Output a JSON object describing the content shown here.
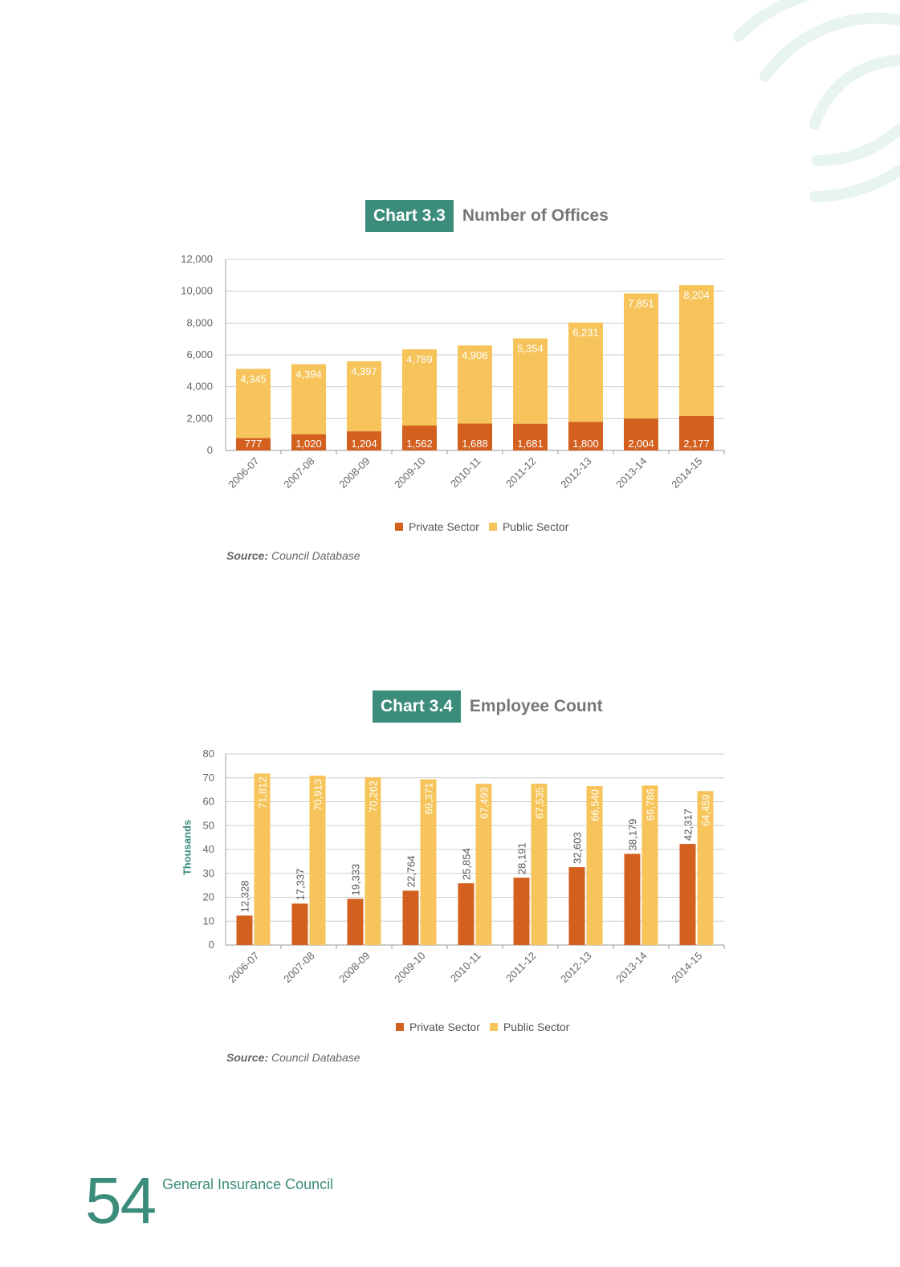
{
  "colors": {
    "private": "#d4601f",
    "public": "#f6c45a",
    "accent": "#3c8c7c",
    "grid": "#cccccc"
  },
  "chart_data": [
    {
      "type": "bar",
      "stacked": true,
      "badge": "Chart 3.3",
      "title": "Number of Offices",
      "categories": [
        "2006-07",
        "2007-08",
        "2008-09",
        "2009-10",
        "2010-11",
        "2011-12",
        "2012-13",
        "2013-14",
        "2014-15"
      ],
      "series": [
        {
          "name": "Private Sector",
          "values": [
            777,
            1020,
            1204,
            1562,
            1688,
            1681,
            1800,
            2004,
            2177
          ]
        },
        {
          "name": "Public Sector",
          "values": [
            4345,
            4394,
            4397,
            4789,
            4906,
            5354,
            6231,
            7851,
            8204
          ]
        }
      ],
      "value_labels": {
        "private": [
          "777",
          "1,020",
          "1,204",
          "1,562",
          "1,688",
          "1,681",
          "1,800",
          "2,004",
          "2,177"
        ],
        "public": [
          "4,345",
          "4,394",
          "4,397",
          "4,789",
          "4,906",
          "5,354",
          "6,231",
          "7,851",
          "8,204"
        ]
      },
      "ylim": [
        0,
        12000
      ],
      "yticks": [
        0,
        2000,
        4000,
        6000,
        8000,
        10000,
        12000
      ],
      "ytick_labels": [
        "0",
        "2,000",
        "4,000",
        "6,000",
        "8,000",
        "10,000",
        "12,000"
      ],
      "ylabel": "",
      "grid": true,
      "legend_position": "bottom",
      "source_label": "Source:",
      "source_text": " Council Database"
    },
    {
      "type": "bar",
      "stacked": false,
      "badge": "Chart 3.4",
      "title": "Employee Count",
      "categories": [
        "2006-07",
        "2007-08",
        "2008-09",
        "2009-10",
        "2010-11",
        "2011-12",
        "2012-13",
        "2013-14",
        "2014-15"
      ],
      "series": [
        {
          "name": "Private Sector",
          "values": [
            12328,
            17337,
            19333,
            22764,
            25854,
            28191,
            32603,
            38179,
            42317
          ]
        },
        {
          "name": "Public Sector",
          "values": [
            71812,
            70913,
            70262,
            69371,
            67493,
            67535,
            66540,
            66786,
            64459
          ]
        }
      ],
      "value_labels": {
        "private": [
          "12,328",
          "17,337",
          "19,333",
          "22,764",
          "25,854",
          "28,191",
          "32,603",
          "38,179",
          "42,317"
        ],
        "public": [
          "71,812",
          "70,913",
          "70,262",
          "69,371",
          "67,493",
          "67,535",
          "66,540",
          "66,786",
          "64,459"
        ]
      },
      "ylim": [
        0,
        80
      ],
      "yticks": [
        0,
        10,
        20,
        30,
        40,
        50,
        60,
        70,
        80
      ],
      "ytick_labels": [
        "0",
        "10",
        "20",
        "30",
        "40",
        "50",
        "60",
        "70",
        "80"
      ],
      "ylabel": "Thousands",
      "grid": true,
      "legend_position": "bottom",
      "source_label": "Source:",
      "source_text": " Council Database"
    }
  ],
  "footer": {
    "page_number": "54",
    "org_name": "General Insurance Council"
  }
}
